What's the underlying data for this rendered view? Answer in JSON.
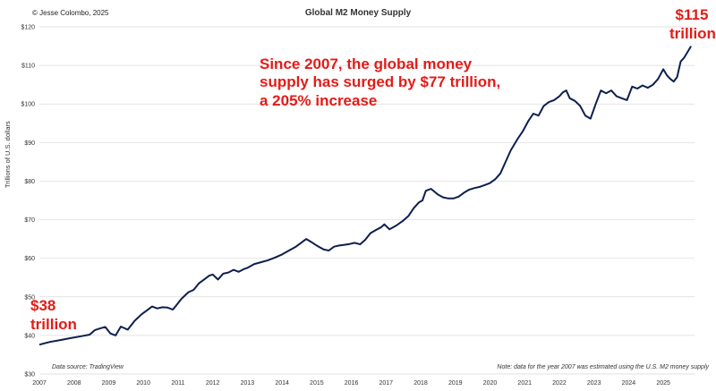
{
  "copyright": "© Jesse Colombo, 2025",
  "source_note": "Data source: TradingView",
  "footnote": "Note: data for the year 2007 was estimated using the U.S. M2 money supply",
  "annotations": {
    "main": "Since 2007, the global money supply has surged by $77 trillion, a 205% increase",
    "end_value": "$115",
    "end_unit": "trillion",
    "start_value": "$38",
    "start_unit": "trillion"
  },
  "colors": {
    "line": "#0d1f4f",
    "annotation": "#e41b17",
    "grid": "#d9d9d9"
  },
  "chart_data": {
    "type": "line",
    "title": "Global M2 Money Supply",
    "xlabel": "",
    "ylabel": "Trillions of U.S. dollars",
    "xlim": [
      2007,
      2025.9
    ],
    "ylim": [
      30,
      120
    ],
    "grid": true,
    "x_ticks": [
      "2007",
      "2008",
      "2009",
      "2010",
      "2011",
      "2012",
      "2013",
      "2014",
      "2015",
      "2016",
      "2017",
      "2018",
      "2019",
      "2020",
      "2021",
      "2022",
      "2023",
      "2024",
      "2025"
    ],
    "y_ticks": [
      "$30",
      "$40",
      "$50",
      "$60",
      "$70",
      "$80",
      "$90",
      "$100",
      "$110",
      "$120"
    ],
    "series": [
      {
        "name": "",
        "x": [
          2007.0,
          2007.3,
          2007.6,
          2007.9,
          2008.2,
          2008.45,
          2008.6,
          2008.75,
          2008.9,
          2009.05,
          2009.2,
          2009.35,
          2009.55,
          2009.75,
          2009.95,
          2010.1,
          2010.25,
          2010.4,
          2010.55,
          2010.7,
          2010.85,
          2010.95,
          2011.1,
          2011.3,
          2011.45,
          2011.6,
          2011.75,
          2011.9,
          2012.0,
          2012.15,
          2012.3,
          2012.45,
          2012.6,
          2012.75,
          2012.9,
          2013.0,
          2013.2,
          2013.4,
          2013.6,
          2013.8,
          2014.0,
          2014.2,
          2014.4,
          2014.55,
          2014.7,
          2014.85,
          2015.0,
          2015.1,
          2015.2,
          2015.35,
          2015.5,
          2015.65,
          2015.8,
          2015.95,
          2016.1,
          2016.25,
          2016.4,
          2016.55,
          2016.7,
          2016.85,
          2016.95,
          2017.1,
          2017.3,
          2017.5,
          2017.65,
          2017.8,
          2017.95,
          2018.05,
          2018.15,
          2018.3,
          2018.5,
          2018.65,
          2018.8,
          2018.95,
          2019.1,
          2019.25,
          2019.4,
          2019.55,
          2019.7,
          2019.85,
          2020.0,
          2020.15,
          2020.3,
          2020.45,
          2020.6,
          2020.8,
          2020.95,
          2021.1,
          2021.25,
          2021.4,
          2021.55,
          2021.7,
          2021.85,
          2022.0,
          2022.1,
          2022.2,
          2022.3,
          2022.45,
          2022.6,
          2022.75,
          2022.9,
          2023.05,
          2023.2,
          2023.35,
          2023.5,
          2023.65,
          2023.8,
          2023.95,
          2024.1,
          2024.25,
          2024.4,
          2024.55,
          2024.7,
          2024.85,
          2025.0,
          2025.1,
          2025.2,
          2025.3,
          2025.4,
          2025.5,
          2025.6,
          2025.7,
          2025.8
        ],
        "y": [
          37.6,
          38.3,
          38.8,
          39.3,
          39.8,
          40.2,
          41.4,
          41.8,
          42.2,
          40.5,
          40.0,
          42.3,
          41.5,
          43.8,
          45.5,
          46.5,
          47.5,
          47.0,
          47.3,
          47.2,
          46.7,
          47.8,
          49.5,
          51.2,
          51.8,
          53.5,
          54.5,
          55.5,
          55.8,
          54.5,
          56.0,
          56.3,
          57.0,
          56.5,
          57.2,
          57.5,
          58.5,
          59.0,
          59.5,
          60.2,
          61.0,
          62.0,
          63.0,
          64.0,
          65.0,
          64.2,
          63.3,
          62.8,
          62.3,
          62.0,
          63.0,
          63.3,
          63.5,
          63.7,
          64.0,
          63.6,
          64.8,
          66.5,
          67.3,
          68.0,
          68.8,
          67.5,
          68.5,
          69.8,
          71.0,
          73.0,
          74.5,
          75.0,
          77.5,
          78.0,
          76.5,
          75.8,
          75.5,
          75.5,
          76.0,
          77.0,
          77.8,
          78.2,
          78.5,
          79.0,
          79.5,
          80.5,
          82.0,
          85.0,
          88.0,
          91.0,
          93.0,
          95.5,
          97.5,
          97.0,
          99.5,
          100.5,
          101.0,
          102.0,
          103.0,
          103.5,
          101.5,
          100.8,
          99.5,
          97.0,
          96.2,
          100.0,
          103.5,
          102.8,
          103.5,
          102.0,
          101.5,
          101.0,
          104.5,
          104.0,
          104.8,
          104.2,
          105.0,
          106.5,
          109.0,
          107.5,
          106.5,
          105.8,
          107.0,
          111.0,
          112.0,
          113.5,
          115.0
        ]
      }
    ]
  }
}
